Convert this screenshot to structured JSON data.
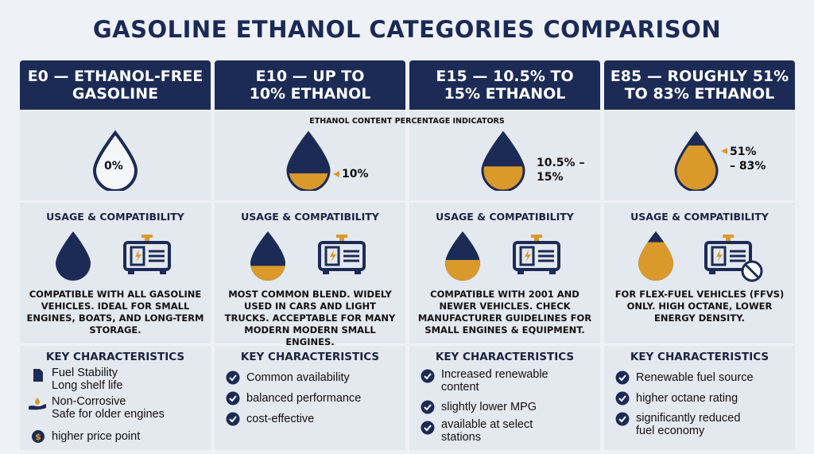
{
  "title": "GASOLINE ETHANOL CATEGORIES COMPARISON",
  "indicators_title": "ETHANOL CONTENT PERCENTAGE INDICATORS",
  "colors": {
    "navy": "#1c2b55",
    "amber": "#d99a2b",
    "panel": "#e4e8ef",
    "background": "#eef1f6"
  },
  "columns": [
    {
      "header_line1": "E0 — ETHANOL-FREE",
      "header_line2": "GASOLINE",
      "percent_label": "0%",
      "percent_label_line2": "",
      "fill_fraction": 0,
      "usage_title": "USAGE & COMPATIBILITY",
      "usage_text": "COMPATIBLE WITH ALL GASOLINE VEHICLES. IDEAL FOR SMALL ENGINES, BOATS, AND LONG-TERM STORAGE.",
      "key_title": "KEY CHARACTERISTICS",
      "key_items": [
        {
          "icon": "document-icon",
          "line1": "Fuel Stability",
          "line2": "Long shelf life"
        },
        {
          "icon": "hand-water-icon",
          "line1": "Non-Corrosive",
          "line2": "Safe for older engines"
        },
        {
          "icon": "dollar-icon",
          "line1": "higher price point",
          "line2": ""
        }
      ]
    },
    {
      "header_line1": "E10 — UP TO",
      "header_line2": "10% ETHANOL",
      "percent_label": "10%",
      "percent_label_line2": "",
      "fill_fraction": 0.3,
      "usage_title": "USAGE & COMPATIBILITY",
      "usage_text": "MOST COMMON BLEND. WIDELY USED IN CARS AND LIGHT TRUCKS. ACCEPTABLE FOR MANY MODERN MODERN SMALL ENGINES.",
      "key_title": "KEY CHARACTERISTICS",
      "key_items": [
        {
          "icon": "check-icon",
          "line1": "Common availability",
          "line2": ""
        },
        {
          "icon": "check-icon",
          "line1": "balanced performance",
          "line2": ""
        },
        {
          "icon": "check-icon",
          "line1": "cost-effective",
          "line2": ""
        }
      ]
    },
    {
      "header_line1": "E15 — 10.5% TO",
      "header_line2": "15% ETHANOL",
      "percent_label": "10.5% –",
      "percent_label_line2": "15%",
      "fill_fraction": 0.42,
      "usage_title": "USAGE & COMPATIBILITY",
      "usage_text": "COMPATIBLE WITH 2001 AND NEWER VEHICLES. CHECK MANUFACTURER GUIDELINES FOR SMALL ENGINES & EQUIPMENT.",
      "key_title": "KEY CHARACTERISTICS",
      "key_items": [
        {
          "icon": "check-icon",
          "line1": "Increased renewable",
          "line2": "content"
        },
        {
          "icon": "check-icon",
          "line1": "slightly lower MPG",
          "line2": ""
        },
        {
          "icon": "check-icon",
          "line1": "available at select",
          "line2": "stations"
        }
      ]
    },
    {
      "header_line1": "E85 — ROUGHLY 51%",
      "header_line2": "TO 83% ETHANOL",
      "percent_label": "51%",
      "percent_label_line2": "– 83%",
      "fill_fraction": 0.78,
      "usage_title": "USAGE & COMPATIBILITY",
      "usage_text": "FOR FLEX-FUEL VEHICLES (FFVs) ONLY. HIGH OCTANE, LOWER ENERGY DENSITY.",
      "key_title": "KEY CHARACTERISTICS",
      "key_items": [
        {
          "icon": "check-icon",
          "line1": "Renewable fuel source",
          "line2": ""
        },
        {
          "icon": "check-icon",
          "line1": "higher octane rating",
          "line2": ""
        },
        {
          "icon": "check-icon",
          "line1": "significantly reduced",
          "line2": "fuel economy"
        }
      ]
    }
  ]
}
